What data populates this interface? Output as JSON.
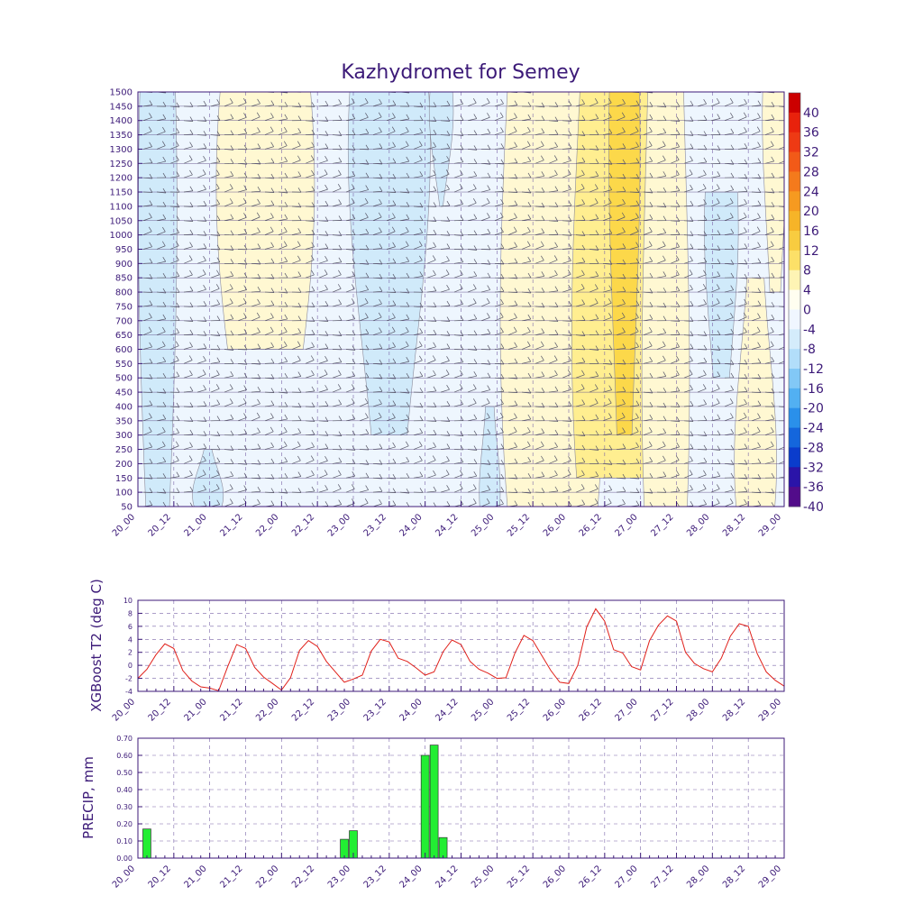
{
  "colors": {
    "axis": "#3c1a78",
    "label": "#3c1a78",
    "temp_line": "#e0201a",
    "precip_bar": "#22ee33",
    "precip_edge": "#333333",
    "wind": "#555566"
  },
  "chart_data": [
    {
      "type": "heatmap",
      "title": "Kazhydromet for Semey",
      "xlabel": "",
      "ylabel": "",
      "x_ticks": [
        "20_00",
        "20_12",
        "21_00",
        "21_12",
        "22_00",
        "22_12",
        "23_00",
        "23_12",
        "24_00",
        "24_12",
        "25_00",
        "25_12",
        "26_00",
        "26_12",
        "27_00",
        "27_12",
        "28_00",
        "28_12",
        "29_00"
      ],
      "y_ticks": [
        50,
        100,
        150,
        200,
        250,
        300,
        350,
        400,
        450,
        500,
        550,
        600,
        650,
        700,
        750,
        800,
        850,
        900,
        950,
        1000,
        1050,
        1100,
        1150,
        1200,
        1250,
        1300,
        1350,
        1400,
        1450,
        1500
      ],
      "ylim": [
        50,
        1500
      ],
      "colorbar_labels": [
        "40",
        "36",
        "32",
        "28",
        "24",
        "20",
        "16",
        "12",
        "8",
        "4",
        "0",
        "-4",
        "-8",
        "-12",
        "-16",
        "-20",
        "-24",
        "-28",
        "-32",
        "-36",
        "-40"
      ],
      "colorbar_colors": [
        "#cc0000",
        "#e8220c",
        "#ee3a14",
        "#f25a18",
        "#f47a1c",
        "#f69a20",
        "#f6b428",
        "#f8cc40",
        "#fce068",
        "#fef4b4",
        "#fffef0",
        "#f0f6ff",
        "#d4ecfb",
        "#b2defa",
        "#82c8f6",
        "#52b0f2",
        "#2a90ea",
        "#1466dc",
        "#0a3ccc",
        "#2a14a8",
        "#520c8a"
      ],
      "field_levels": [
        -4,
        4,
        8,
        12
      ],
      "field_level_colors": [
        "#d0eafa",
        "#fff8d2",
        "#ffee90",
        "#fcd84a"
      ],
      "field_base_color": "#eef6fe",
      "blobs": [
        {
          "x0": 0.0,
          "x1": 0.55,
          "p0": 50,
          "p1": 1500,
          "level": -4,
          "w_bot": 0.3,
          "w_top": 0.45
        },
        {
          "x0": 1.25,
          "x1": 2.3,
          "p0": 600,
          "p1": 1500,
          "level": 4,
          "w_bot": 0.5,
          "w_top": 0.6
        },
        {
          "x0": 0.7,
          "x1": 1.25,
          "p0": 50,
          "p1": 250,
          "level": -4,
          "w_bot": 0.35,
          "w_top": 0.1
        },
        {
          "x0": 3.0,
          "x1": 4.0,
          "p0": 300,
          "p1": 1500,
          "level": -4,
          "w_bot": 0.25,
          "w_top": 0.55
        },
        {
          "x0": 4.0,
          "x1": 4.45,
          "p0": 1100,
          "p1": 1500,
          "level": -4,
          "w_bot": 0.05,
          "w_top": 0.35
        },
        {
          "x0": 5.25,
          "x1": 6.3,
          "p0": 50,
          "p1": 1500,
          "level": 4,
          "w_bot": 0.6,
          "w_top": 0.6
        },
        {
          "x0": 6.2,
          "x1": 7.1,
          "p0": 150,
          "p1": 1500,
          "level": 8,
          "w_bot": 0.6,
          "w_top": 0.55
        },
        {
          "x0": 6.6,
          "x1": 6.95,
          "p0": 300,
          "p1": 1500,
          "level": 12,
          "w_bot": 0.3,
          "w_top": 0.6
        },
        {
          "x0": 7.1,
          "x1": 7.6,
          "p0": 50,
          "p1": 1500,
          "level": 4,
          "w_bot": 0.6,
          "w_top": 0.5
        },
        {
          "x0": 7.9,
          "x1": 8.35,
          "p0": 500,
          "p1": 1150,
          "level": -4,
          "w_bot": 0.25,
          "w_top": 0.5
        },
        {
          "x0": 8.3,
          "x1": 8.9,
          "p0": 50,
          "p1": 850,
          "level": 4,
          "w_bot": 0.45,
          "w_top": 0.2
        },
        {
          "x0": 8.75,
          "x1": 9.0,
          "p0": 800,
          "p1": 1500,
          "level": 4,
          "w_bot": 0.3,
          "w_top": 0.7
        },
        {
          "x0": 4.8,
          "x1": 5.0,
          "p0": 50,
          "p1": 400,
          "level": -4,
          "w_bot": 0.7,
          "w_top": 0.3
        }
      ]
    },
    {
      "type": "line",
      "xlabel": "",
      "ylabel": "XGBoost T2 (deg C)",
      "x_ticks": [
        "20_00",
        "20_12",
        "21_00",
        "21_12",
        "22_00",
        "22_12",
        "23_00",
        "23_12",
        "24_00",
        "24_12",
        "25_00",
        "25_12",
        "26_00",
        "26_12",
        "27_00",
        "27_12",
        "28_00",
        "28_12",
        "29_00"
      ],
      "y_ticks": [
        -4,
        -2,
        0,
        2,
        4,
        6,
        8,
        10
      ],
      "ylim": [
        -4,
        10
      ],
      "x_step_hours": 3,
      "series": [
        {
          "values": [
            -2.0,
            -0.6,
            1.6,
            3.3,
            2.6,
            -0.8,
            -2.4,
            -3.3,
            -3.5,
            -3.9,
            -0.2,
            3.2,
            2.6,
            -0.3,
            -1.8,
            -2.8,
            -3.8,
            -1.9,
            2.3,
            3.8,
            2.9,
            0.6,
            -1.0,
            -2.6,
            -2.1,
            -1.5,
            2.2,
            4.0,
            3.6,
            1.1,
            0.6,
            -0.4,
            -1.5,
            -1.0,
            2.1,
            3.9,
            3.2,
            0.6,
            -0.6,
            -1.2,
            -2.0,
            -1.9,
            1.9,
            4.6,
            3.8,
            1.5,
            -0.8,
            -2.6,
            -2.8,
            0.0,
            5.9,
            8.7,
            6.8,
            2.4,
            1.9,
            -0.2,
            -0.7,
            3.8,
            6.2,
            7.6,
            6.8,
            2.0,
            0.3,
            -0.5,
            -1.0,
            1.1,
            4.5,
            6.4,
            6.0,
            1.8,
            -1.0,
            -2.3,
            -3.2
          ]
        }
      ]
    },
    {
      "type": "bar",
      "xlabel": "",
      "ylabel": "PRECIP, mm",
      "x_ticks": [
        "20_00",
        "20_12",
        "21_00",
        "21_12",
        "22_00",
        "22_12",
        "23_00",
        "23_12",
        "24_00",
        "24_12",
        "25_00",
        "25_12",
        "26_00",
        "26_12",
        "27_00",
        "27_12",
        "28_00",
        "28_12",
        "29_00"
      ],
      "y_ticks": [
        "0.00",
        "0.10",
        "0.20",
        "0.30",
        "0.40",
        "0.50",
        "0.60",
        "0.70"
      ],
      "ylim": [
        0,
        0.7
      ],
      "bars": [
        {
          "hour": 3,
          "value": 0.17
        },
        {
          "hour": 69,
          "value": 0.11
        },
        {
          "hour": 72,
          "value": 0.16
        },
        {
          "hour": 96,
          "value": 0.6
        },
        {
          "hour": 99,
          "value": 0.66
        },
        {
          "hour": 102,
          "value": 0.12
        }
      ]
    }
  ]
}
